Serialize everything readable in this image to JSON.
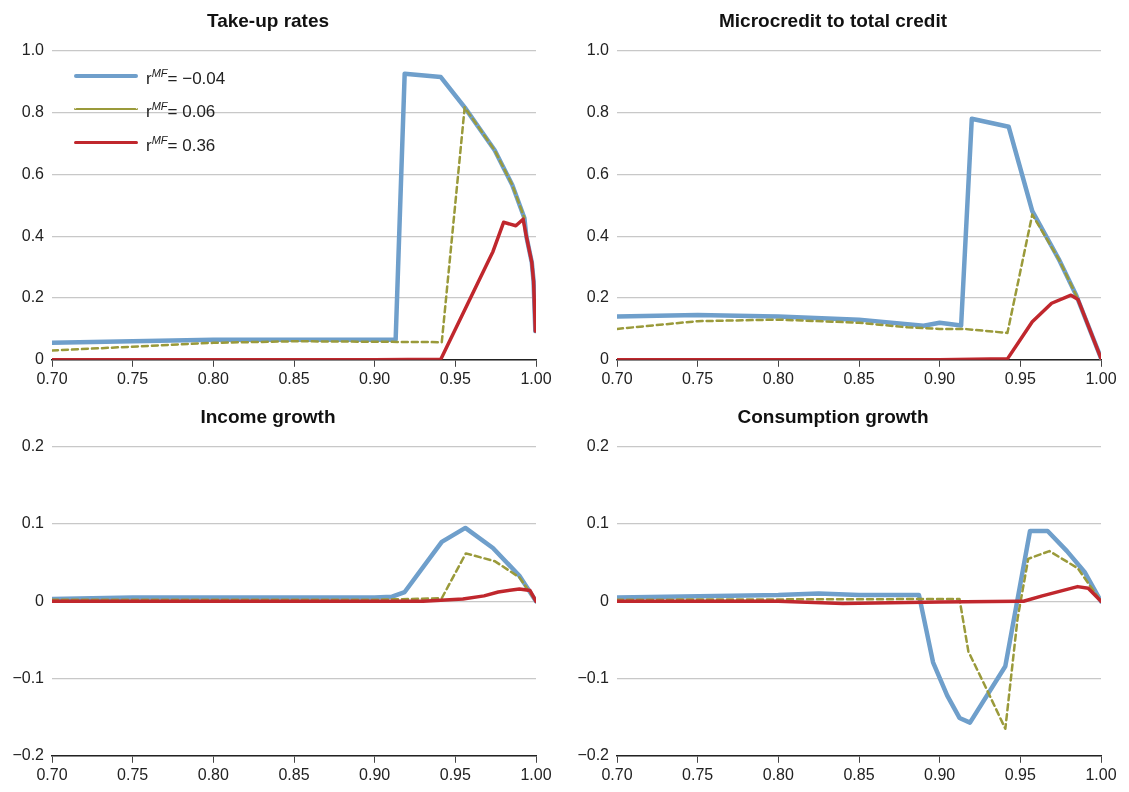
{
  "chart_data": [
    {
      "type": "line",
      "title": "Take-up rates",
      "xlim": [
        0.7,
        1.0
      ],
      "ylim": [
        0,
        1.0
      ],
      "xticks": [
        {
          "value": 0.7,
          "label": "0.70"
        },
        {
          "value": 0.75,
          "label": "0.75"
        },
        {
          "value": 0.8,
          "label": "0.80"
        },
        {
          "value": 0.85,
          "label": "0.85"
        },
        {
          "value": 0.9,
          "label": "0.90"
        },
        {
          "value": 0.95,
          "label": "0.95"
        },
        {
          "value": 1.0,
          "label": "1.00"
        }
      ],
      "yticks": [
        0,
        0.2,
        0.4,
        0.6,
        0.8,
        {
          "value": 1.0,
          "label": "1.0"
        }
      ],
      "grid": "y",
      "legend": "top left",
      "marker": "none",
      "series": [
        {
          "name": "r$^{MF}$= −0.04",
          "color": "#6f9fcb",
          "line_style": "solid",
          "x": [
            0.7,
            0.8,
            0.913,
            0.9186,
            0.941,
            0.9558,
            0.9744,
            0.9853,
            0.9928,
            0.994,
            0.9974,
            0.9985,
            0.9996
          ],
          "values": [
            0.055,
            0.065,
            0.065,
            0.926,
            0.915,
            0.817,
            0.678,
            0.566,
            0.459,
            0.4,
            0.315,
            0.254,
            0.093
          ]
        },
        {
          "name": "r$^{MF}$=  0.06",
          "color": "#9a9a3a",
          "line_style": "dashed",
          "x": [
            0.7,
            0.8,
            0.85,
            0.9416,
            0.9558,
            0.9744,
            0.9853,
            0.9928
          ],
          "values": [
            0.03,
            0.055,
            0.06,
            0.057,
            0.817,
            0.678,
            0.566,
            0.459
          ]
        },
        {
          "name": "r$^{MF}$=  0.36",
          "color": "#c0272d",
          "line_style": "solid",
          "x": [
            0.7,
            0.9,
            0.941,
            0.9733,
            0.9799,
            0.9875,
            0.992,
            0.994,
            0.9974,
            0.9985,
            0.9996
          ],
          "values": [
            0,
            0,
            0.002,
            0.35,
            0.445,
            0.434,
            0.455,
            0.4,
            0.315,
            0.254,
            0.093
          ]
        }
      ]
    },
    {
      "type": "line",
      "title": "Microcredit to total credit",
      "xlim": [
        0.7,
        1.0
      ],
      "ylim": [
        0,
        1.0
      ],
      "xticks": [
        {
          "value": 0.7,
          "label": "0.70"
        },
        {
          "value": 0.75,
          "label": "0.75"
        },
        {
          "value": 0.8,
          "label": "0.80"
        },
        {
          "value": 0.85,
          "label": "0.85"
        },
        {
          "value": 0.9,
          "label": "0.90"
        },
        {
          "value": 0.95,
          "label": "0.95"
        },
        {
          "value": 1.0,
          "label": "1.00"
        }
      ],
      "yticks": [
        0,
        0.2,
        0.4,
        0.6,
        0.8,
        {
          "value": 1.0,
          "label": "1.0"
        }
      ],
      "grid": "y",
      "marker": "none",
      "series": [
        {
          "color": "#6f9fcb",
          "line_style": "solid",
          "x": [
            0.7,
            0.75,
            0.8,
            0.85,
            0.89,
            0.9,
            0.9133,
            0.9199,
            0.9428,
            0.9574,
            0.9738,
            0.9847,
            1.0
          ],
          "values": [
            0.14,
            0.145,
            0.14,
            0.13,
            0.11,
            0.12,
            0.111,
            0.78,
            0.754,
            0.481,
            0.326,
            0.208,
            0.005
          ]
        },
        {
          "color": "#9a9a3a",
          "line_style": "dashed",
          "x": [
            0.7,
            0.75,
            0.8,
            0.85,
            0.88,
            0.9,
            0.915,
            0.942,
            0.9574,
            0.9738,
            0.9847,
            1.0
          ],
          "values": [
            0.1,
            0.125,
            0.13,
            0.12,
            0.105,
            0.1,
            0.1,
            0.087,
            0.47,
            0.326,
            0.208,
            0.005
          ]
        },
        {
          "color": "#c0272d",
          "line_style": "solid",
          "x": [
            0.7,
            0.9,
            0.942,
            0.9574,
            0.9694,
            0.9814,
            0.9858,
            1.0
          ],
          "values": [
            0,
            0,
            0.003,
            0.123,
            0.183,
            0.209,
            0.195,
            0.005
          ]
        }
      ]
    },
    {
      "type": "line",
      "title": "Income growth",
      "xlim": [
        0.7,
        1.0
      ],
      "ylim": [
        -0.2,
        0.2
      ],
      "xticks": [
        {
          "value": 0.7,
          "label": "0.70"
        },
        {
          "value": 0.75,
          "label": "0.75"
        },
        {
          "value": 0.8,
          "label": "0.80"
        },
        {
          "value": 0.85,
          "label": "0.85"
        },
        {
          "value": 0.9,
          "label": "0.90"
        },
        {
          "value": 0.95,
          "label": "0.95"
        },
        {
          "value": 1.0,
          "label": "1.00"
        }
      ],
      "yticks": [
        {
          "value": -0.2,
          "label": "−0.2"
        },
        {
          "value": -0.1,
          "label": "−0.1"
        },
        0,
        0.1,
        0.2
      ],
      "grid": "y",
      "marker": "none",
      "series": [
        {
          "color": "#6f9fcb",
          "line_style": "solid",
          "x": [
            0.7,
            0.75,
            0.9,
            0.9108,
            0.9186,
            0.9416,
            0.9562,
            0.9733,
            0.9897,
            1.0
          ],
          "values": [
            0.003,
            0.005,
            0.005,
            0.006,
            0.012,
            0.077,
            0.095,
            0.069,
            0.033,
            0
          ]
        },
        {
          "color": "#9a9a3a",
          "line_style": "dashed",
          "x": [
            0.7,
            0.9,
            0.9416,
            0.9565,
            0.9744,
            0.9897,
            1.0
          ],
          "values": [
            0.002,
            0.002,
            0.004,
            0.062,
            0.052,
            0.031,
            0
          ]
        },
        {
          "color": "#c0272d",
          "line_style": "solid",
          "x": [
            0.7,
            0.93,
            0.9547,
            0.9678,
            0.9766,
            0.9897,
            0.9963,
            1.0
          ],
          "values": [
            0,
            0,
            0.003,
            0.007,
            0.012,
            0.016,
            0.014,
            0
          ]
        }
      ]
    },
    {
      "type": "line",
      "title": "Consumption growth",
      "xlim": [
        0.7,
        1.0
      ],
      "ylim": [
        -0.2,
        0.2
      ],
      "xticks": [
        {
          "value": 0.7,
          "label": "0.70"
        },
        {
          "value": 0.75,
          "label": "0.75"
        },
        {
          "value": 0.8,
          "label": "0.80"
        },
        {
          "value": 0.85,
          "label": "0.85"
        },
        {
          "value": 0.9,
          "label": "0.90"
        },
        {
          "value": 0.95,
          "label": "0.95"
        },
        {
          "value": 1.0,
          "label": "1.00"
        }
      ],
      "yticks": [
        {
          "value": -0.2,
          "label": "−0.2"
        },
        {
          "value": -0.1,
          "label": "−0.1"
        },
        0,
        0.1,
        0.2
      ],
      "grid": "y",
      "marker": "none",
      "series": [
        {
          "color": "#6f9fcb",
          "line_style": "solid",
          "x": [
            0.7,
            0.8,
            0.825,
            0.85,
            0.8872,
            0.8959,
            0.9047,
            0.9123,
            0.9188,
            0.9407,
            0.956,
            0.9669,
            0.9789,
            0.9898,
            1.0
          ],
          "values": [
            0.005,
            0.008,
            0.01,
            0.008,
            0.008,
            -0.079,
            -0.122,
            -0.151,
            -0.157,
            -0.084,
            0.091,
            0.091,
            0.065,
            0.038,
            0
          ]
        },
        {
          "color": "#9a9a3a",
          "line_style": "dashed",
          "x": [
            0.7,
            0.9123,
            0.9178,
            0.9287,
            0.9407,
            0.9483,
            0.9549,
            0.968,
            0.9855,
            1.0
          ],
          "values": [
            0.002,
            0.003,
            -0.065,
            -0.112,
            -0.165,
            -0.022,
            0.055,
            0.065,
            0.043,
            0
          ]
        },
        {
          "color": "#c0272d",
          "line_style": "solid",
          "x": [
            0.7,
            0.8,
            0.84,
            0.9,
            0.952,
            0.9636,
            0.9855,
            0.9921,
            1.0
          ],
          "values": [
            0,
            0,
            -0.003,
            -0.001,
            0,
            0.007,
            0.019,
            0.017,
            0
          ]
        }
      ]
    }
  ]
}
